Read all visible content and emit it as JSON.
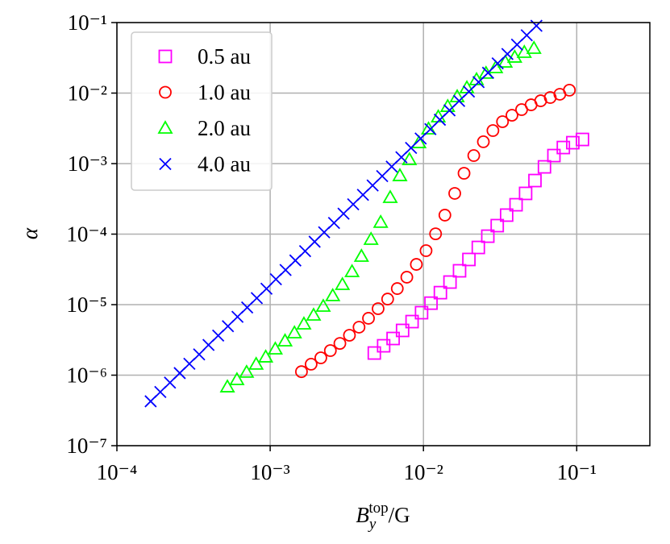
{
  "chart_data": {
    "type": "scatter",
    "xlabel": {
      "base": "B",
      "sub": "y",
      "sup": "top",
      "rest": "/G"
    },
    "ylabel": "α",
    "xscale": "log",
    "yscale": "log",
    "xlim": [
      0.0001,
      0.3
    ],
    "ylim": [
      1e-07,
      0.1
    ],
    "xticks": [
      {
        "value": 0.0001,
        "label": "10⁻⁴"
      },
      {
        "value": 0.001,
        "label": "10⁻³"
      },
      {
        "value": 0.01,
        "label": "10⁻²"
      },
      {
        "value": 0.1,
        "label": "10⁻¹"
      }
    ],
    "yticks": [
      {
        "value": 1e-07,
        "label": "10⁻⁷"
      },
      {
        "value": 1e-06,
        "label": "10⁻⁶"
      },
      {
        "value": 1e-05,
        "label": "10⁻⁵"
      },
      {
        "value": 0.0001,
        "label": "10⁻⁴"
      },
      {
        "value": 0.001,
        "label": "10⁻³"
      },
      {
        "value": 0.01,
        "label": "10⁻²"
      },
      {
        "value": 0.1,
        "label": "10⁻¹"
      }
    ],
    "grid": true,
    "legend": "upper left",
    "series": [
      {
        "name": "0.5 au",
        "color": "#ff00ff",
        "marker": "square",
        "x": [
          0.00478,
          0.0055,
          0.00634,
          0.00731,
          0.00843,
          0.00972,
          0.0112,
          0.0129,
          0.0149,
          0.0172,
          0.0198,
          0.0228,
          0.0263,
          0.0303,
          0.0349,
          0.0402,
          0.0464,
          0.0534,
          0.0616,
          0.071,
          0.0818,
          0.0943,
          0.109
        ],
        "values": [
          2.06e-06,
          2.61e-06,
          3.31e-06,
          4.31e-06,
          5.75e-06,
          7.69e-06,
          1.05e-05,
          1.48e-05,
          2.09e-05,
          3.02e-05,
          4.37e-05,
          6.47e-05,
          9.35e-05,
          0.000132,
          0.000186,
          0.000261,
          0.000378,
          0.000575,
          0.000899,
          0.0013,
          0.00169,
          0.00198,
          0.0022
        ]
      },
      {
        "name": "1.0 au",
        "color": "#ff0000",
        "marker": "circle",
        "x": [
          0.0016,
          0.00185,
          0.00214,
          0.00247,
          0.00285,
          0.00329,
          0.0038,
          0.00438,
          0.00506,
          0.00584,
          0.00675,
          0.00779,
          0.00899,
          0.0104,
          0.012,
          0.0138,
          0.016,
          0.0184,
          0.0213,
          0.0246,
          0.0284,
          0.0328,
          0.0378,
          0.0437,
          0.0504,
          0.0582,
          0.0672,
          0.0776,
          0.0896
        ],
        "values": [
          1.12e-06,
          1.43e-06,
          1.76e-06,
          2.23e-06,
          2.82e-06,
          3.68e-06,
          4.79e-06,
          6.4e-06,
          8.77e-06,
          1.2e-05,
          1.69e-05,
          2.45e-05,
          3.72e-05,
          5.83e-05,
          0.000101,
          0.000186,
          0.000378,
          0.000729,
          0.0013,
          0.00204,
          0.00294,
          0.00393,
          0.00485,
          0.00583,
          0.00682,
          0.00778,
          0.00865,
          0.00962,
          0.011
        ]
      },
      {
        "name": "2.0 au",
        "color": "#00ff00",
        "marker": "triangle",
        "x": [
          0.000526,
          0.000607,
          0.000702,
          0.00081,
          0.000935,
          0.00108,
          0.00125,
          0.00144,
          0.00166,
          0.00192,
          0.00222,
          0.00256,
          0.00296,
          0.00342,
          0.00394,
          0.00455,
          0.00526,
          0.00607,
          0.00702,
          0.0081,
          0.00935,
          0.0108,
          0.0125,
          0.0144,
          0.0166,
          0.0192,
          0.0222,
          0.0256,
          0.0296,
          0.0342,
          0.0394,
          0.0455,
          0.0526
        ],
        "values": [
          6.82e-07,
          8.65e-07,
          1.1e-06,
          1.43e-06,
          1.81e-06,
          2.35e-06,
          3.06e-06,
          3.98e-06,
          5.32e-06,
          7.1e-06,
          9.48e-06,
          1.34e-05,
          1.93e-05,
          2.94e-05,
          4.85e-05,
          8.43e-05,
          0.000147,
          0.000331,
          0.000675,
          0.00114,
          0.00198,
          0.0031,
          0.0046,
          0.00647,
          0.00889,
          0.0119,
          0.0155,
          0.0191,
          0.0229,
          0.0275,
          0.0323,
          0.0378,
          0.0431
        ]
      },
      {
        "name": "4.0 au",
        "color": "#0000ff",
        "marker": "cross",
        "x": [
          0.000166,
          0.000192,
          0.000222,
          0.000257,
          0.000297,
          0.000344,
          0.000396,
          0.000458,
          0.00053,
          0.000612,
          0.000708,
          0.000818,
          0.000946,
          0.00109,
          0.00126,
          0.00146,
          0.00169,
          0.00195,
          0.00225,
          0.00261,
          0.00301,
          0.00348,
          0.00403,
          0.00466,
          0.00538,
          0.00621,
          0.00718,
          0.0083,
          0.00959,
          0.0111,
          0.0128,
          0.0148,
          0.0171,
          0.0198,
          0.0229,
          0.0264,
          0.0305,
          0.0353,
          0.0408,
          0.0472,
          0.0546
        ],
        "values": [
          4.26e-07,
          5.78e-07,
          7.85e-07,
          1.07e-06,
          1.45e-06,
          1.97e-06,
          2.68e-06,
          3.64e-06,
          4.94e-06,
          6.71e-06,
          9.12e-06,
          1.24e-05,
          1.68e-05,
          2.29e-05,
          3.1e-05,
          4.23e-05,
          5.74e-05,
          7.8e-05,
          0.000106,
          0.000144,
          0.000195,
          0.000265,
          0.000361,
          0.00049,
          0.000665,
          0.000906,
          0.00123,
          0.00167,
          0.00227,
          0.00308,
          0.00419,
          0.00569,
          0.00773,
          0.0105,
          0.0143,
          0.0194,
          0.0264,
          0.0358,
          0.0486,
          0.0661,
          0.0899
        ]
      }
    ]
  }
}
